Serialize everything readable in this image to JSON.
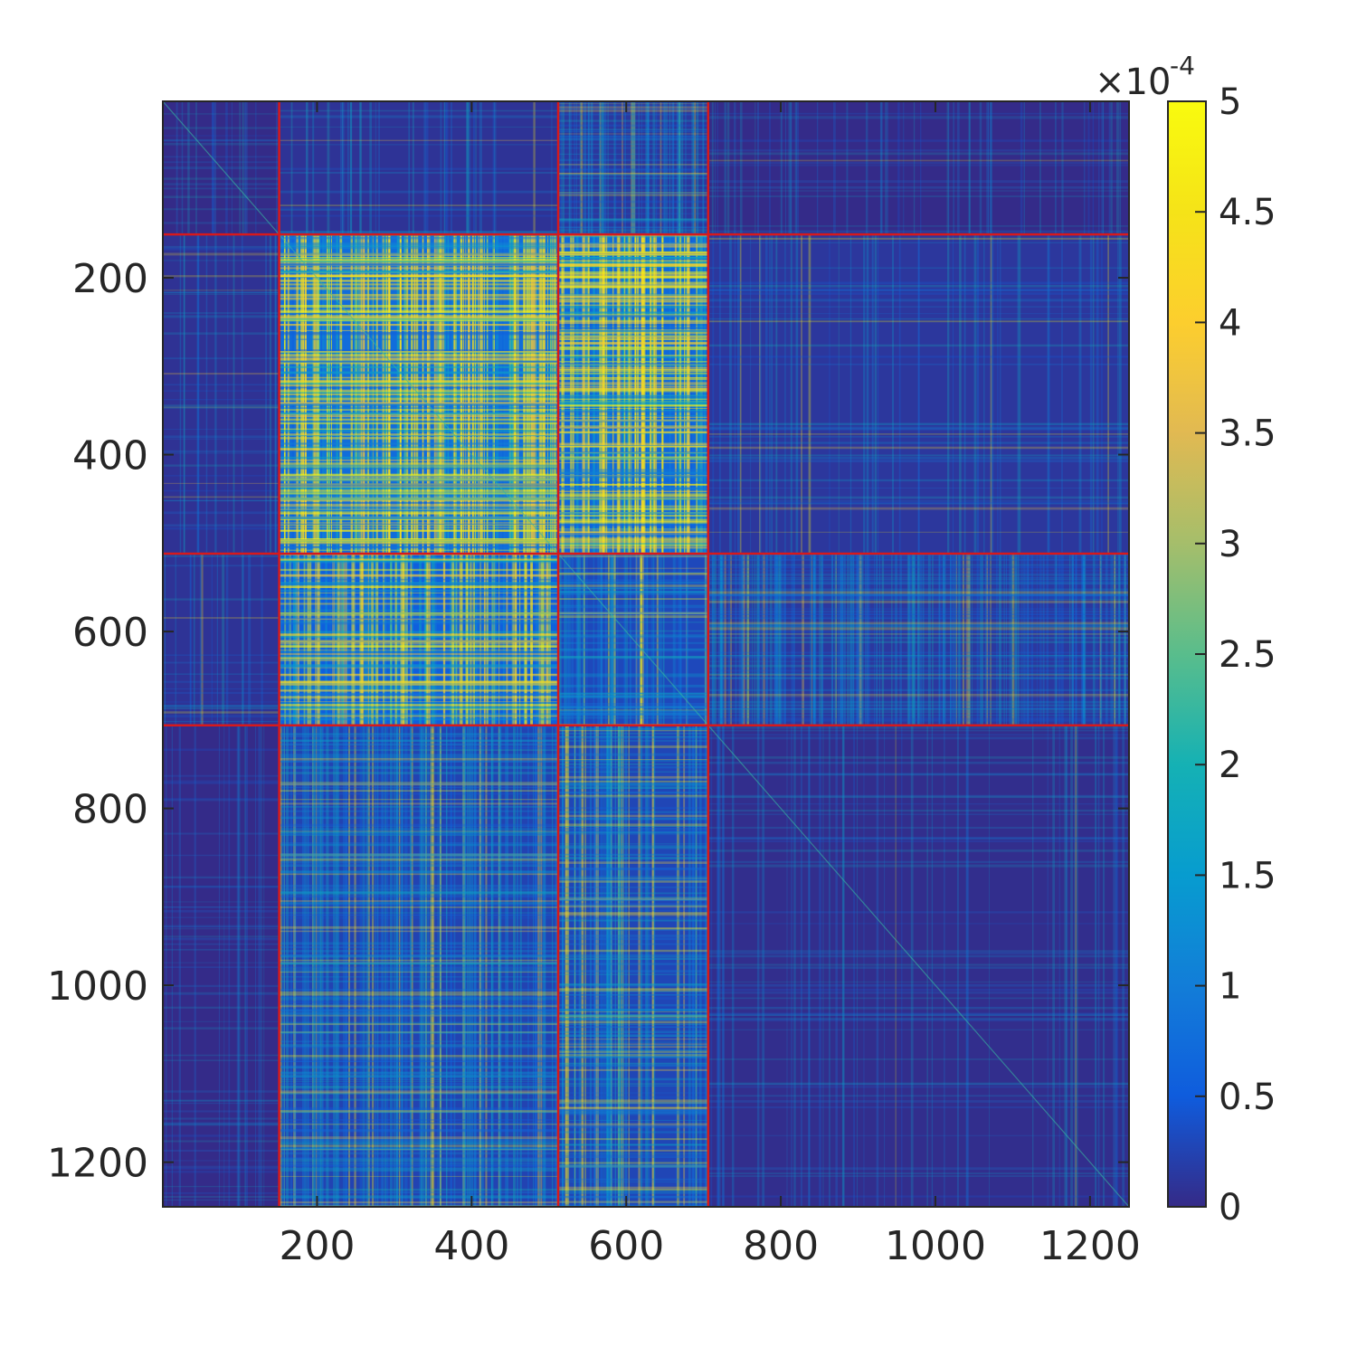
{
  "chart_data": {
    "type": "heatmap",
    "title": "",
    "xlabel": "",
    "ylabel": "",
    "matrix_size": 1250,
    "xlim": [
      0.5,
      1250.5
    ],
    "ylim": [
      0.5,
      1250.5
    ],
    "x_direction": "normal",
    "y_direction": "reverse",
    "x_ticks": [
      200,
      400,
      600,
      800,
      1000,
      1200
    ],
    "x_tick_labels": [
      "200",
      "400",
      "600",
      "800",
      "1000",
      "1200"
    ],
    "y_ticks": [
      200,
      400,
      600,
      800,
      1000,
      1200
    ],
    "y_tick_labels": [
      "200",
      "400",
      "600",
      "800",
      "1000",
      "1200"
    ],
    "block_boundaries": [
      151,
      512,
      706
    ],
    "blocks": [
      {
        "rows": [
          1,
          151
        ],
        "cols": [
          1,
          151
        ],
        "mean_value": 0.03
      },
      {
        "rows": [
          1,
          151
        ],
        "cols": [
          151,
          512
        ],
        "mean_value": 0.35
      },
      {
        "rows": [
          1,
          151
        ],
        "cols": [
          512,
          706
        ],
        "mean_value": 0.55
      },
      {
        "rows": [
          1,
          151
        ],
        "cols": [
          706,
          1250
        ],
        "mean_value": 0.05
      },
      {
        "rows": [
          151,
          512
        ],
        "cols": [
          1,
          151
        ],
        "mean_value": 0.3
      },
      {
        "rows": [
          151,
          512
        ],
        "cols": [
          151,
          512
        ],
        "mean_value": 3.0
      },
      {
        "rows": [
          151,
          512
        ],
        "cols": [
          512,
          706
        ],
        "mean_value": 2.8
      },
      {
        "rows": [
          151,
          512
        ],
        "cols": [
          706,
          1250
        ],
        "mean_value": 0.5
      },
      {
        "rows": [
          512,
          706
        ],
        "cols": [
          1,
          151
        ],
        "mean_value": 0.35
      },
      {
        "rows": [
          512,
          706
        ],
        "cols": [
          151,
          512
        ],
        "mean_value": 2.2
      },
      {
        "rows": [
          512,
          706
        ],
        "cols": [
          512,
          706
        ],
        "mean_value": 1.2
      },
      {
        "rows": [
          512,
          706
        ],
        "cols": [
          706,
          1250
        ],
        "mean_value": 0.55
      },
      {
        "rows": [
          706,
          1250
        ],
        "cols": [
          1,
          151
        ],
        "mean_value": 0.05
      },
      {
        "rows": [
          706,
          1250
        ],
        "cols": [
          151,
          512
        ],
        "mean_value": 1.0
      },
      {
        "rows": [
          706,
          1250
        ],
        "cols": [
          512,
          706
        ],
        "mean_value": 1.1
      },
      {
        "rows": [
          706,
          1250
        ],
        "cols": [
          706,
          1250
        ],
        "mean_value": 0.15
      }
    ],
    "colorbar": {
      "colormap": "parula",
      "range": [
        0,
        5
      ],
      "ticks": [
        0,
        0.5,
        1,
        1.5,
        2,
        2.5,
        3,
        3.5,
        4,
        4.5,
        5
      ],
      "tick_labels": [
        "0",
        "0.5",
        "1",
        "1.5",
        "2",
        "2.5",
        "3",
        "3.5",
        "4",
        "4.5",
        "5"
      ],
      "exponent_label": "×10",
      "exponent": "-4",
      "position": "right"
    },
    "colors": {
      "boundary": "#d7191c",
      "low": "#352a87",
      "high": "#f9fb0e"
    },
    "grid": false,
    "legend": "none"
  }
}
